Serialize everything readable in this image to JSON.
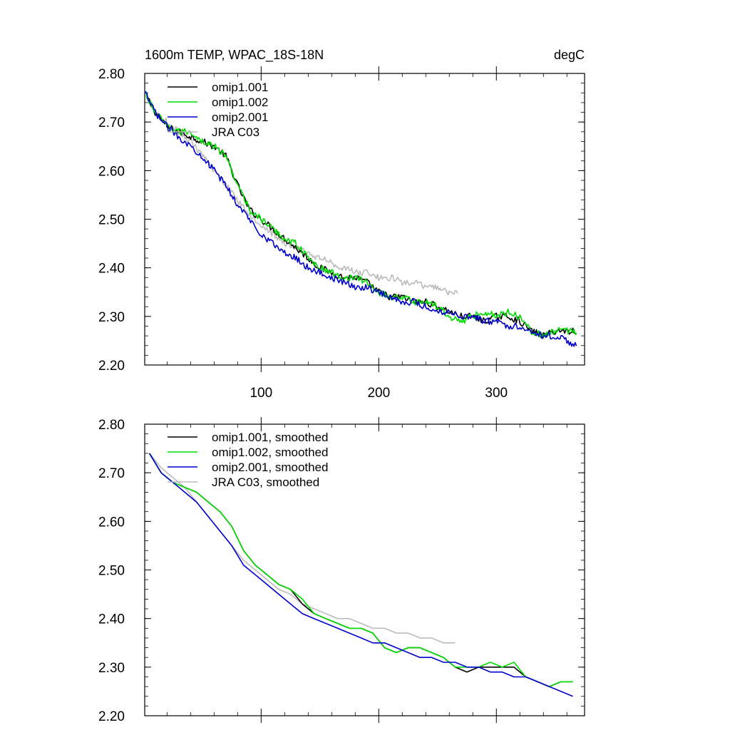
{
  "chart_data": [
    {
      "type": "line",
      "title": "1600m TEMP, WPAC_18S-18N",
      "units": "degC",
      "xlim": [
        1,
        375
      ],
      "ylim": [
        2.2,
        2.8
      ],
      "xticks": [
        100,
        200,
        300
      ],
      "xticklabels": [
        "100",
        "200",
        "300"
      ],
      "yticks": [
        2.2,
        2.3,
        2.4,
        2.5,
        2.6,
        2.7,
        2.8
      ],
      "yticklabels": [
        "2.20",
        "2.30",
        "2.40",
        "2.50",
        "2.60",
        "2.70",
        "2.80"
      ],
      "legend_position": "top-left",
      "grid": false,
      "series": [
        {
          "name": "omip1.001",
          "color": "#000000",
          "x": [
            1,
            10,
            20,
            30,
            40,
            50,
            60,
            70,
            80,
            90,
            100,
            110,
            120,
            130,
            140,
            150,
            160,
            170,
            180,
            190,
            200,
            210,
            220,
            230,
            240,
            250,
            260,
            270,
            280,
            290,
            300,
            310,
            320,
            330,
            340,
            350,
            360,
            368
          ],
          "y": [
            2.76,
            2.72,
            2.69,
            2.68,
            2.67,
            2.66,
            2.65,
            2.63,
            2.57,
            2.52,
            2.5,
            2.48,
            2.46,
            2.44,
            2.42,
            2.4,
            2.39,
            2.38,
            2.38,
            2.37,
            2.35,
            2.34,
            2.34,
            2.33,
            2.33,
            2.32,
            2.31,
            2.3,
            2.3,
            2.29,
            2.3,
            2.3,
            2.29,
            2.27,
            2.26,
            2.27,
            2.27,
            2.27
          ]
        },
        {
          "name": "omip1.002",
          "color": "#00dd00",
          "x": [
            1,
            10,
            20,
            30,
            40,
            50,
            60,
            70,
            80,
            90,
            100,
            110,
            120,
            130,
            140,
            150,
            160,
            170,
            180,
            190,
            200,
            210,
            220,
            230,
            240,
            250,
            260,
            270,
            280,
            290,
            300,
            310,
            320,
            330,
            340,
            350,
            360,
            368
          ],
          "y": [
            2.76,
            2.72,
            2.69,
            2.68,
            2.68,
            2.66,
            2.65,
            2.63,
            2.57,
            2.52,
            2.5,
            2.48,
            2.46,
            2.45,
            2.42,
            2.4,
            2.39,
            2.38,
            2.38,
            2.37,
            2.35,
            2.34,
            2.34,
            2.33,
            2.33,
            2.32,
            2.3,
            2.29,
            2.3,
            2.31,
            2.3,
            2.31,
            2.3,
            2.27,
            2.26,
            2.27,
            2.27,
            2.27
          ]
        },
        {
          "name": "omip2.001",
          "color": "#0000cc",
          "x": [
            1,
            10,
            20,
            30,
            40,
            50,
            60,
            70,
            80,
            90,
            100,
            110,
            120,
            130,
            140,
            150,
            160,
            170,
            180,
            190,
            200,
            210,
            220,
            230,
            240,
            250,
            260,
            270,
            280,
            290,
            300,
            310,
            320,
            330,
            340,
            350,
            360,
            368
          ],
          "y": [
            2.76,
            2.72,
            2.69,
            2.67,
            2.65,
            2.63,
            2.6,
            2.57,
            2.53,
            2.5,
            2.47,
            2.45,
            2.43,
            2.42,
            2.4,
            2.39,
            2.38,
            2.37,
            2.36,
            2.36,
            2.35,
            2.34,
            2.33,
            2.33,
            2.32,
            2.31,
            2.31,
            2.3,
            2.3,
            2.29,
            2.29,
            2.28,
            2.28,
            2.27,
            2.26,
            2.26,
            2.25,
            2.24
          ]
        },
        {
          "name": "JRA C03",
          "color": "#bbbbbb",
          "x": [
            1,
            10,
            20,
            30,
            40,
            50,
            60,
            70,
            80,
            90,
            100,
            110,
            120,
            130,
            140,
            150,
            160,
            170,
            180,
            190,
            200,
            210,
            220,
            230,
            240,
            250,
            260,
            267
          ],
          "y": [
            2.76,
            2.72,
            2.7,
            2.68,
            2.66,
            2.63,
            2.6,
            2.57,
            2.54,
            2.51,
            2.49,
            2.47,
            2.45,
            2.44,
            2.43,
            2.42,
            2.41,
            2.4,
            2.39,
            2.39,
            2.38,
            2.38,
            2.37,
            2.37,
            2.36,
            2.36,
            2.35,
            2.35
          ]
        }
      ]
    },
    {
      "type": "line",
      "title": "",
      "xlim": [
        1,
        375
      ],
      "ylim": [
        2.2,
        2.8
      ],
      "xticks": [
        100,
        200,
        300
      ],
      "yticks": [
        2.2,
        2.3,
        2.4,
        2.5,
        2.6,
        2.7,
        2.8
      ],
      "yticklabels": [
        "2.20",
        "2.30",
        "2.40",
        "2.50",
        "2.60",
        "2.70",
        "2.80"
      ],
      "legend_position": "top-left",
      "grid": false,
      "series": [
        {
          "name": "omip1.001, smoothed",
          "color": "#000000",
          "x": [
            5,
            15,
            25,
            35,
            45,
            55,
            65,
            75,
            85,
            95,
            105,
            115,
            125,
            135,
            145,
            155,
            165,
            175,
            185,
            195,
            205,
            215,
            225,
            235,
            245,
            255,
            265,
            275,
            285,
            295,
            305,
            315,
            325,
            335,
            345,
            355,
            365
          ],
          "y": [
            2.74,
            2.7,
            2.68,
            2.67,
            2.66,
            2.64,
            2.62,
            2.59,
            2.54,
            2.51,
            2.49,
            2.47,
            2.46,
            2.43,
            2.41,
            2.4,
            2.39,
            2.38,
            2.38,
            2.37,
            2.34,
            2.33,
            2.34,
            2.34,
            2.33,
            2.32,
            2.3,
            2.29,
            2.3,
            2.3,
            2.3,
            2.3,
            2.28,
            2.27,
            2.26,
            2.27,
            2.27
          ]
        },
        {
          "name": "omip1.002, smoothed",
          "color": "#00dd00",
          "x": [
            5,
            15,
            25,
            35,
            45,
            55,
            65,
            75,
            85,
            95,
            105,
            115,
            125,
            135,
            145,
            155,
            165,
            175,
            185,
            195,
            205,
            215,
            225,
            235,
            245,
            255,
            265,
            275,
            285,
            295,
            305,
            315,
            325,
            335,
            345,
            355,
            365
          ],
          "y": [
            2.74,
            2.7,
            2.68,
            2.67,
            2.66,
            2.64,
            2.62,
            2.59,
            2.54,
            2.51,
            2.49,
            2.47,
            2.46,
            2.44,
            2.41,
            2.4,
            2.39,
            2.38,
            2.38,
            2.37,
            2.34,
            2.33,
            2.34,
            2.34,
            2.33,
            2.32,
            2.3,
            2.3,
            2.3,
            2.31,
            2.3,
            2.31,
            2.28,
            2.27,
            2.26,
            2.27,
            2.27
          ]
        },
        {
          "name": "omip2.001, smoothed",
          "color": "#0000cc",
          "x": [
            5,
            15,
            25,
            35,
            45,
            55,
            65,
            75,
            85,
            95,
            105,
            115,
            125,
            135,
            145,
            155,
            165,
            175,
            185,
            195,
            205,
            215,
            225,
            235,
            245,
            255,
            265,
            275,
            285,
            295,
            305,
            315,
            325,
            335,
            345,
            355,
            365
          ],
          "y": [
            2.74,
            2.7,
            2.68,
            2.66,
            2.64,
            2.61,
            2.58,
            2.55,
            2.51,
            2.49,
            2.47,
            2.45,
            2.43,
            2.41,
            2.4,
            2.39,
            2.38,
            2.37,
            2.36,
            2.35,
            2.35,
            2.34,
            2.33,
            2.32,
            2.32,
            2.31,
            2.31,
            2.3,
            2.3,
            2.29,
            2.29,
            2.28,
            2.28,
            2.27,
            2.26,
            2.25,
            2.24
          ]
        },
        {
          "name": "JRA C03, smoothed",
          "color": "#bbbbbb",
          "x": [
            5,
            15,
            25,
            35,
            45,
            55,
            65,
            75,
            85,
            95,
            105,
            115,
            125,
            135,
            145,
            155,
            165,
            175,
            185,
            195,
            205,
            215,
            225,
            235,
            245,
            255,
            265
          ],
          "y": [
            2.74,
            2.71,
            2.69,
            2.67,
            2.64,
            2.61,
            2.58,
            2.55,
            2.52,
            2.5,
            2.48,
            2.46,
            2.45,
            2.43,
            2.42,
            2.41,
            2.4,
            2.4,
            2.39,
            2.38,
            2.38,
            2.37,
            2.37,
            2.36,
            2.36,
            2.35,
            2.35
          ]
        }
      ]
    }
  ]
}
